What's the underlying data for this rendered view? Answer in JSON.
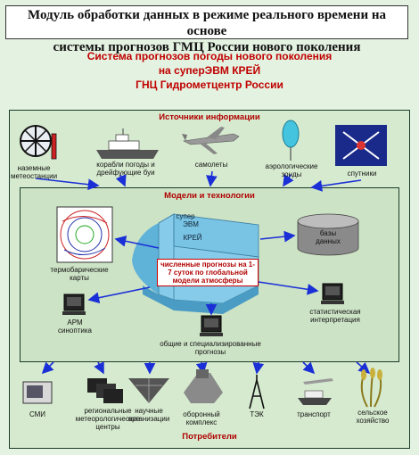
{
  "title": {
    "line1": "Модуль обработки данных в режиме реального времени на основе",
    "line2": "системы прогнозов ГМЦ России нового поколения"
  },
  "subtitle": {
    "line1": "Система прогнозов погоды нового поколения",
    "line2": "на суперЭВМ КРЕЙ",
    "line3": "ГНЦ Гидрометцентр России"
  },
  "sources": {
    "header": "Источники информации",
    "items": {
      "ground_stations": "наземные метеостанции",
      "ships": "корабли погоды и дрейфующие буи",
      "planes": "самолеты",
      "sondes": "аэрологические зонды",
      "satellites": "спутники"
    }
  },
  "models": {
    "header": "Модели и технологии",
    "super1": "супер",
    "super2": "ЭВМ",
    "krei": "КРЕЙ",
    "forecast_box": "численные прогнозы на 1-7 суток по глобальной модели атмосферы",
    "database": "базы данных",
    "thermobaric": "термобарические карты",
    "arm": "АРМ синоптика",
    "stat": "статистическая интерпретация",
    "general": "общие и специализированные прогнозы"
  },
  "consumers": {
    "header": "Потребители",
    "items": {
      "media": "СМИ",
      "regional": "региональные метеорологические центры",
      "science": "научные организации",
      "defense": "оборонный комплекс",
      "tek": "ТЭК",
      "transport": "транспорт",
      "agriculture": "сельское хозяйство"
    }
  },
  "colors": {
    "frame_bg": "#d4e8cd",
    "inner_bg": "#cfe4c8",
    "cray": "#7fc7e6",
    "arrow": "#1a2fd6",
    "header_red": "#b00000"
  }
}
